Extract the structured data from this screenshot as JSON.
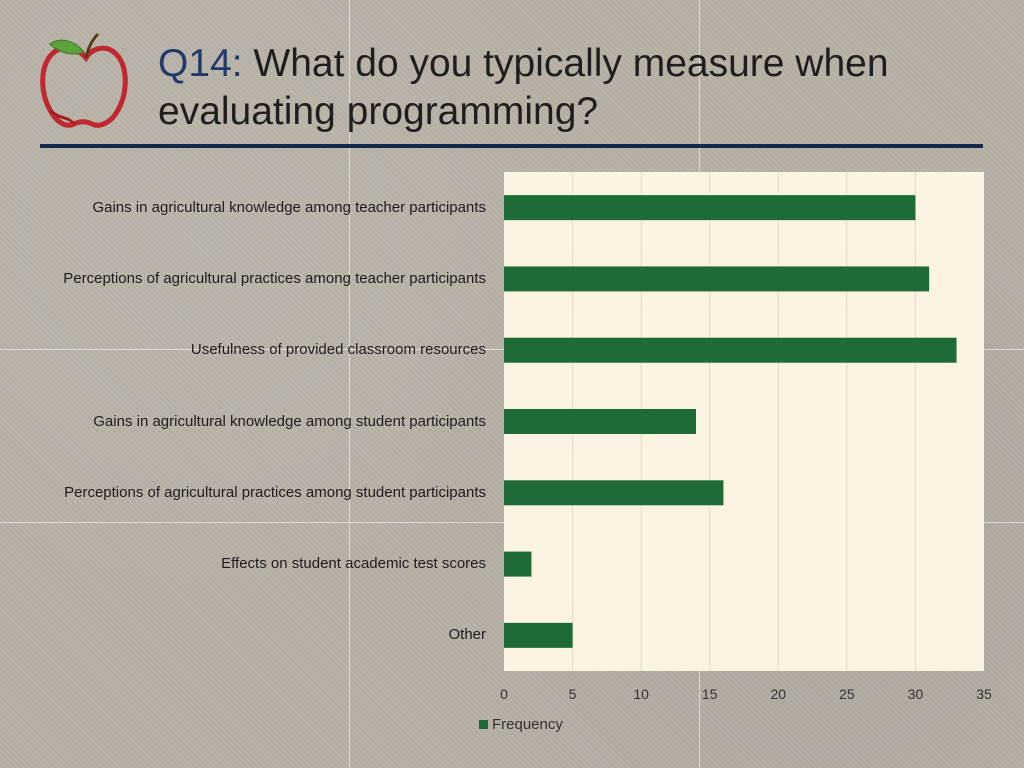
{
  "slide": {
    "title_prefix": "Q14:",
    "title_text": " What do you typically measure when evaluating programming?"
  },
  "logo": {
    "icon": "apple-icon"
  },
  "colors": {
    "bar": "#1f6b37",
    "plot_background": "#fbf4e3",
    "title_rule": "#13284a",
    "title_prefix": "#1f3a6b"
  },
  "chart_data": {
    "type": "bar",
    "orientation": "horizontal",
    "categories": [
      "Gains in agricultural knowledge among teacher participants",
      "Perceptions of agricultural practices among teacher participants",
      "Usefulness of provided classroom resources",
      "Gains in agricultural knowledge among student participants",
      "Perceptions of agricultural practices among student participants",
      "Effects on student academic test scores",
      "Other"
    ],
    "series": [
      {
        "name": "Frequency",
        "values": [
          30,
          31,
          33,
          14,
          16,
          2,
          5
        ]
      }
    ],
    "xlim": [
      0,
      35
    ],
    "xticks": [
      "0",
      "5",
      "10",
      "15",
      "20",
      "25",
      "30",
      "35"
    ],
    "grid": true,
    "legend": "bottom"
  }
}
